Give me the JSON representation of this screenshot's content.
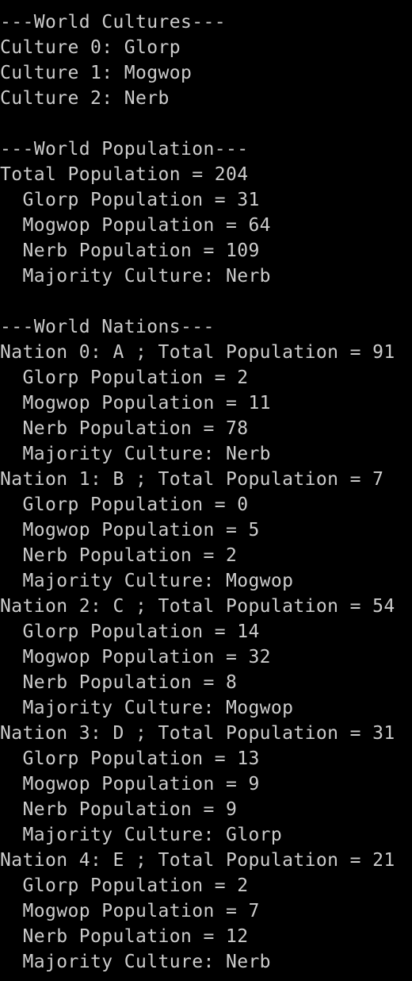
{
  "console": {
    "colors": {
      "background": "#000000",
      "text": "#cccccc"
    },
    "lines": [
      "---World Cultures---",
      "Culture 0: Glorp",
      "Culture 1: Mogwop",
      "Culture 2: Nerb",
      "",
      "---World Population---",
      "Total Population = 204",
      "  Glorp Population = 31",
      "  Mogwop Population = 64",
      "  Nerb Population = 109",
      "  Majority Culture: Nerb",
      "",
      "---World Nations---",
      "Nation 0: A ; Total Population = 91",
      "  Glorp Population = 2",
      "  Mogwop Population = 11",
      "  Nerb Population = 78",
      "  Majority Culture: Nerb",
      "Nation 1: B ; Total Population = 7",
      "  Glorp Population = 0",
      "  Mogwop Population = 5",
      "  Nerb Population = 2",
      "  Majority Culture: Mogwop",
      "Nation 2: C ; Total Population = 54",
      "  Glorp Population = 14",
      "  Mogwop Population = 32",
      "  Nerb Population = 8",
      "  Majority Culture: Mogwop",
      "Nation 3: D ; Total Population = 31",
      "  Glorp Population = 13",
      "  Mogwop Population = 9",
      "  Nerb Population = 9",
      "  Majority Culture: Glorp",
      "Nation 4: E ; Total Population = 21",
      "  Glorp Population = 2",
      "  Mogwop Population = 7",
      "  Nerb Population = 12",
      "  Majority Culture: Nerb"
    ]
  }
}
